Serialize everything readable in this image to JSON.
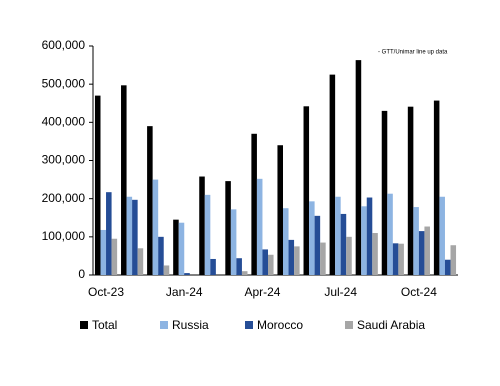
{
  "chart_data": {
    "type": "bar",
    "annotation": "- GTT/Unimar line up data",
    "categories": [
      "Oct-23",
      null,
      null,
      "Jan-24",
      null,
      null,
      "Apr-24",
      null,
      null,
      "Jul-24",
      null,
      null,
      "Oct-24",
      null
    ],
    "series": [
      {
        "name": "Total",
        "color": "#000000",
        "values": [
          470000,
          497000,
          390000,
          145000,
          258000,
          246000,
          370000,
          340000,
          442000,
          525000,
          563000,
          430000,
          441000,
          457000
        ]
      },
      {
        "name": "Russia",
        "color": "#8db4e2",
        "values": [
          118000,
          205000,
          250000,
          137000,
          210000,
          172000,
          252000,
          175000,
          193000,
          205000,
          180000,
          213000,
          178000,
          205000
        ]
      },
      {
        "name": "Morocco",
        "color": "#254d96",
        "values": [
          217000,
          197000,
          100000,
          5000,
          42000,
          44000,
          67000,
          92000,
          155000,
          160000,
          203000,
          83000,
          115000,
          40000
        ]
      },
      {
        "name": "Saudi Arabia",
        "color": "#a6a6a6",
        "values": [
          95000,
          70000,
          25000,
          0,
          0,
          10000,
          53000,
          75000,
          85000,
          100000,
          110000,
          82000,
          127000,
          78000
        ]
      }
    ],
    "ylim": [
      0,
      600000
    ],
    "yticks": [
      0,
      {
        "value": 100000,
        "label": "100,000"
      },
      {
        "value": 200000,
        "label": "200,000"
      },
      {
        "value": 300000,
        "label": "300,000"
      },
      {
        "value": 400000,
        "label": "400,000"
      },
      {
        "value": 500000,
        "label": "500,000"
      },
      {
        "value": 600000,
        "label": "600,000"
      }
    ],
    "legend": "bottom"
  }
}
